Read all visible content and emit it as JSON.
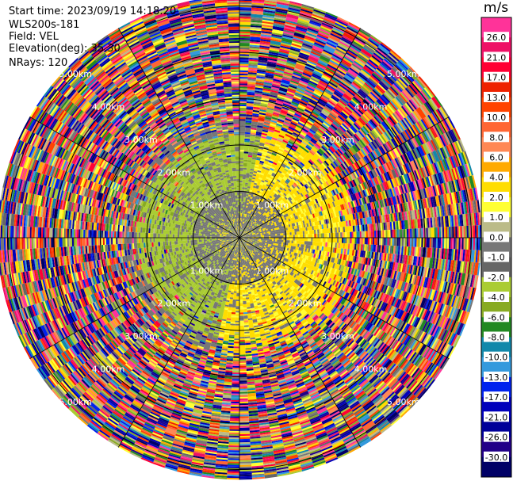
{
  "header": {
    "start_time": "Start time: 2023/09/19 14:18:20",
    "instrument": "WLS200s-181",
    "field": "Field: VEL",
    "elevation": "Elevation(deg): 35.30",
    "nrays": "NRays: 120"
  },
  "colorbar": {
    "unit": "m/s",
    "ticks": [
      "26.0",
      "21.0",
      "17.0",
      "13.0",
      "10.0",
      "8.0",
      "6.0",
      "4.0",
      "2.0",
      "1.0",
      "0.0",
      "-1.0",
      "-2.0",
      "-4.0",
      "-6.0",
      "-8.0",
      "-10.0",
      "-13.0",
      "-17.0",
      "-21.0",
      "-26.0",
      "-30.0"
    ],
    "colors": [
      "#ff3399",
      "#ee1166",
      "#ff0033",
      "#ee2200",
      "#ff4400",
      "#ff6633",
      "#ff8855",
      "#ffaa00",
      "#ffdd00",
      "#ffff33",
      "#bbbb88",
      "#777777",
      "#666666",
      "#aacc33",
      "#88aa22",
      "#228822",
      "#1188aa",
      "#3399dd",
      "#0022ee",
      "#0000bb",
      "#000099",
      "#220088",
      "#000066"
    ]
  },
  "range_rings": {
    "labels": [
      "1.00km",
      "2.00km",
      "3.00km",
      "4.00km",
      "5.00km"
    ]
  },
  "chart_data": {
    "type": "heatmap",
    "projection": "polar PPI",
    "field": "VEL",
    "units": "m/s",
    "nrays": 120,
    "elevation_deg": 35.3,
    "range_rings_km": [
      1,
      2,
      3,
      4,
      5
    ],
    "clim": [
      -30.0,
      26.0
    ],
    "regions": [
      {
        "range_km": [
          0,
          1.2
        ],
        "description_values": "near-zero velocities (grey, mixed yellow/green patches)"
      },
      {
        "range_km": [
          1.2,
          2.4
        ],
        "description_values": "east/north ~ +2 m/s (yellow), west/south ~ -2 m/s (green), core grey"
      },
      {
        "range_km": [
          2.4,
          5.2
        ],
        "description_values": "noise: random velocities spanning -30 to 26 m/s"
      }
    ]
  }
}
